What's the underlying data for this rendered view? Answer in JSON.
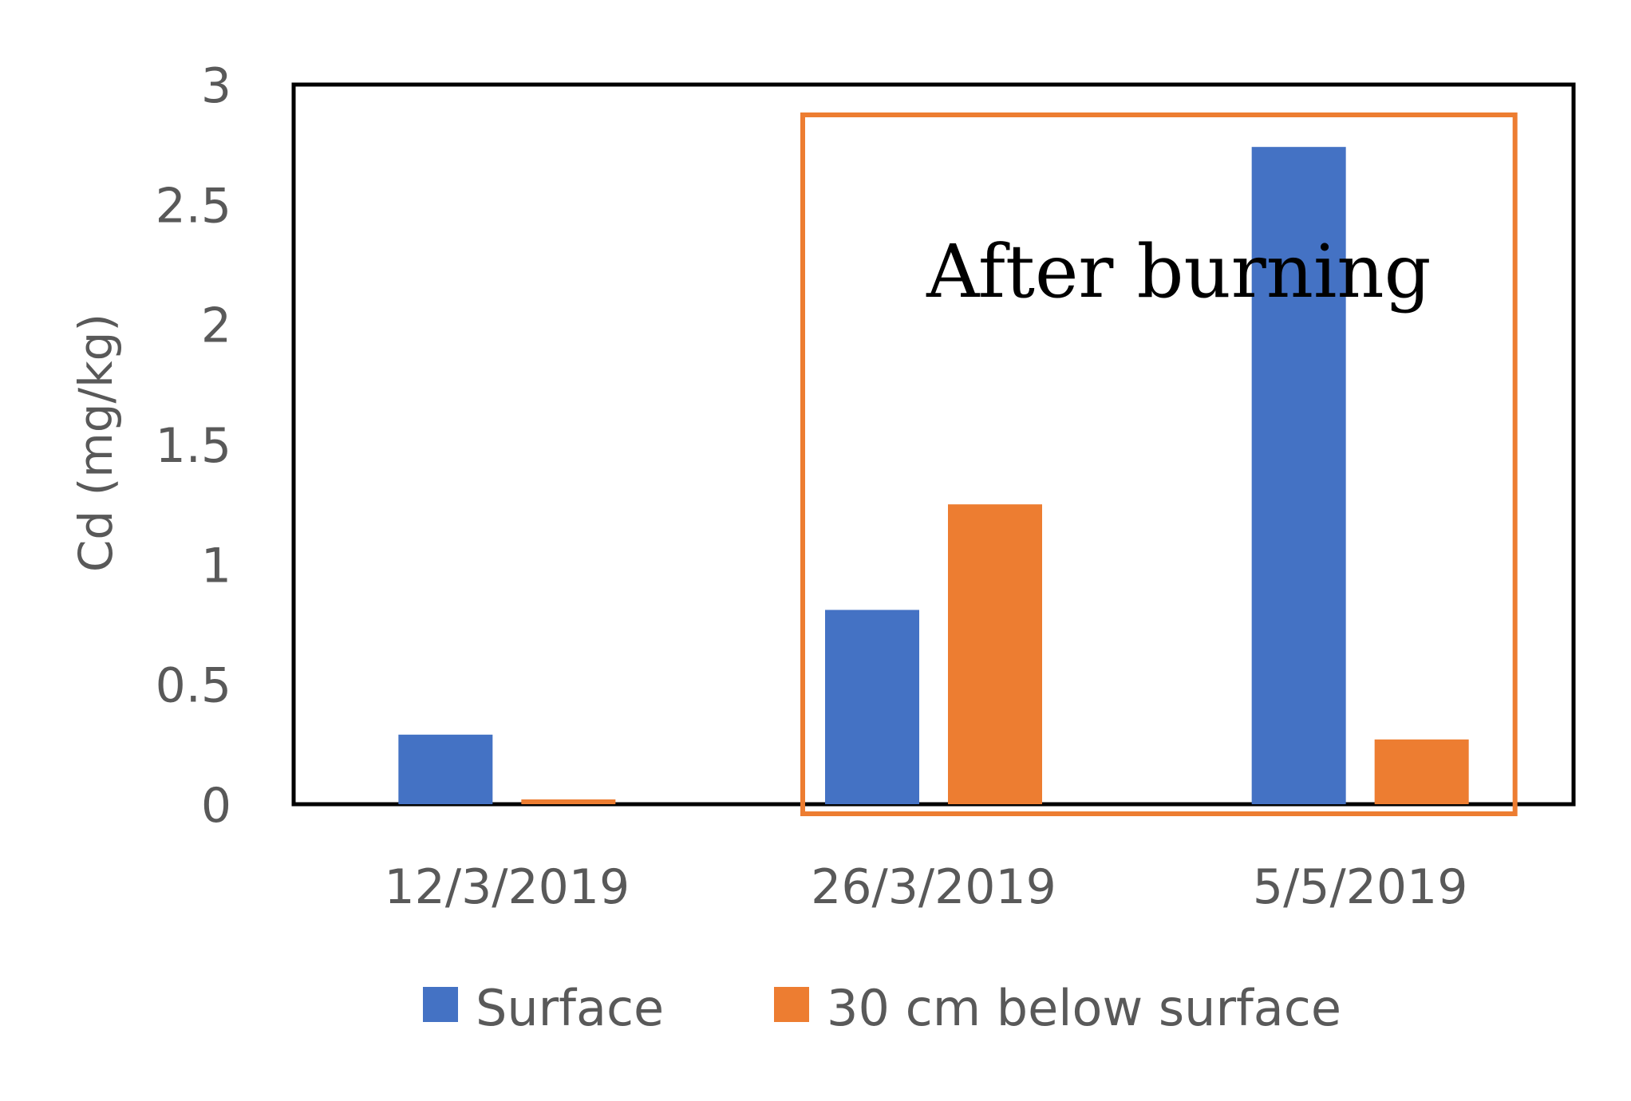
{
  "chart_data": {
    "type": "bar",
    "categories": [
      "12/3/2019",
      "26/3/2019",
      "5/5/2019"
    ],
    "series": [
      {
        "name": "Surface",
        "values": [
          0.29,
          0.81,
          2.74
        ],
        "color": "#4472C4"
      },
      {
        "name": "30 cm below surface",
        "values": [
          0.02,
          1.25,
          0.27
        ],
        "color": "#ED7D31"
      }
    ],
    "title": "",
    "xlabel": "",
    "ylabel": "Cd (mg/kg)",
    "ylim": [
      0,
      3
    ],
    "yticks": [
      "0",
      "0.5",
      "1",
      "1.5",
      "2",
      "2.5",
      "3"
    ],
    "grid": false,
    "legend_position": "bottom",
    "annotation": {
      "text": "After burning",
      "box_color": "#ED7D31",
      "spans_categories": [
        "26/3/2019",
        "5/5/2019"
      ]
    }
  }
}
